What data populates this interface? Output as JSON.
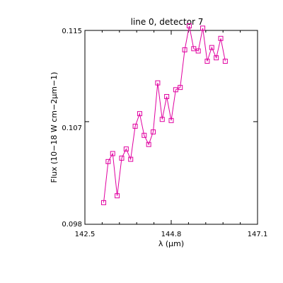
{
  "chart_data": {
    "type": "line",
    "title": "line 0, detector 7",
    "xlabel": "λ (μm)",
    "ylabel": "Flux (10−18 W cm−2μm−1)",
    "xlim": [
      142.5,
      147.1
    ],
    "ylim": [
      0.098,
      0.115
    ],
    "xticks": [
      "142.5",
      "144.8",
      "147.1"
    ],
    "yticks": [
      "0.098",
      "0.107",
      "0.115"
    ],
    "grid": false,
    "marker": "square",
    "colors": {
      "series": "#e000a0",
      "axes": "#000000"
    },
    "series": [
      {
        "x": [
          143.0,
          143.12,
          143.24,
          143.36,
          143.48,
          143.6,
          143.72,
          143.84,
          143.96,
          144.08,
          144.2,
          144.32,
          144.44,
          144.56,
          144.68,
          144.8,
          144.92,
          145.04,
          145.16,
          145.28,
          145.4,
          145.52,
          145.64,
          145.76,
          145.88,
          146.0,
          146.12,
          146.24
        ],
        "y": [
          0.0999,
          0.1035,
          0.1042,
          0.1005,
          0.1038,
          0.1046,
          0.1037,
          0.1066,
          0.1077,
          0.1058,
          0.105,
          0.1061,
          0.1104,
          0.1072,
          0.1092,
          0.1071,
          0.1098,
          0.11,
          0.1133,
          0.1154,
          0.1134,
          0.1132,
          0.1152,
          0.1123,
          0.1135,
          0.1126,
          0.1143,
          0.1123
        ]
      }
    ]
  }
}
